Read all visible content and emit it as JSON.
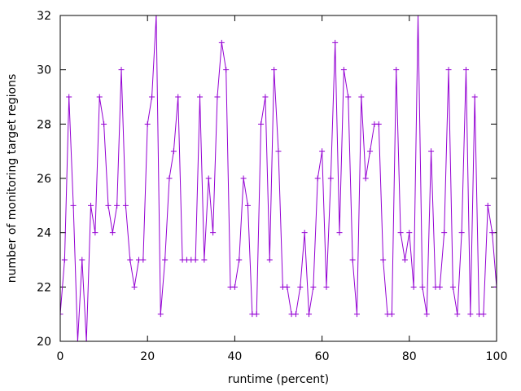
{
  "chart_data": {
    "type": "line",
    "title": "",
    "xlabel": "runtime (percent)",
    "ylabel": "number of monitoring target regions",
    "xlim": [
      0,
      100
    ],
    "ylim": [
      20,
      32
    ],
    "xticks": [
      0,
      20,
      40,
      60,
      80,
      100
    ],
    "yticks": [
      20,
      22,
      24,
      26,
      28,
      30,
      32
    ],
    "grid": false,
    "legend": "none",
    "series": [
      {
        "color": "#9400d3",
        "marker": "plus",
        "x": [
          0,
          1,
          2,
          3,
          4,
          5,
          6,
          7,
          8,
          9,
          10,
          11,
          12,
          13,
          14,
          15,
          16,
          17,
          18,
          19,
          20,
          21,
          22,
          23,
          24,
          25,
          26,
          27,
          28,
          29,
          30,
          31,
          32,
          33,
          34,
          35,
          36,
          37,
          38,
          39,
          40,
          41,
          42,
          43,
          44,
          45,
          46,
          47,
          48,
          49,
          50,
          51,
          52,
          53,
          54,
          55,
          56,
          57,
          58,
          59,
          60,
          61,
          62,
          63,
          64,
          65,
          66,
          67,
          68,
          69,
          70,
          71,
          72,
          73,
          74,
          75,
          76,
          77,
          78,
          79,
          80,
          81,
          82,
          83,
          84,
          85,
          86,
          87,
          88,
          89,
          90,
          91,
          92,
          93,
          94,
          95,
          96,
          97,
          98,
          99,
          100
        ],
        "y": [
          21,
          23,
          29,
          25,
          20,
          23,
          20,
          25,
          24,
          29,
          28,
          25,
          24,
          25,
          30,
          25,
          23,
          22,
          23,
          23,
          28,
          29,
          32,
          21,
          23,
          26,
          27,
          29,
          23,
          23,
          23,
          23,
          29,
          23,
          26,
          24,
          29,
          31,
          30,
          22,
          22,
          23,
          26,
          25,
          21,
          21,
          28,
          29,
          23,
          30,
          27,
          22,
          22,
          21,
          21,
          22,
          24,
          21,
          22,
          26,
          27,
          22,
          26,
          31,
          24,
          30,
          29,
          23,
          21,
          29,
          26,
          27,
          28,
          28,
          23,
          21,
          21,
          30,
          24,
          23,
          24,
          22,
          32,
          22,
          21,
          27,
          22,
          22,
          24,
          30,
          22,
          21,
          24,
          30,
          21,
          29,
          21,
          21,
          25,
          24,
          22
        ]
      }
    ]
  }
}
